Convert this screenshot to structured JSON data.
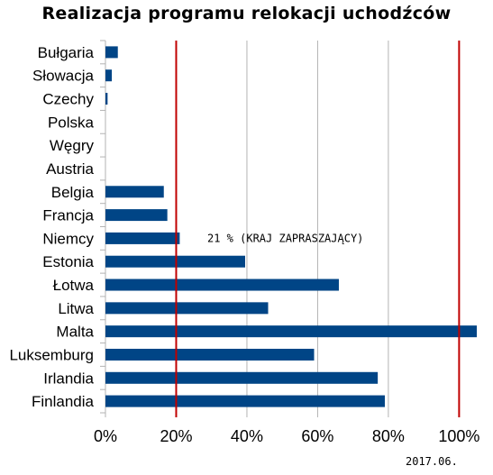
{
  "chart_data": {
    "type": "bar",
    "orientation": "horizontal",
    "title": "Realizacja programu relokacji uchodźców",
    "categories": [
      "Bułgaria",
      "Słowacja",
      "Czechy",
      "Polska",
      "Węgry",
      "Austria",
      "Belgia",
      "Francja",
      "Niemcy",
      "Estonia",
      "Łotwa",
      "Litwa",
      "Malta",
      "Luksemburg",
      "Irlandia",
      "Finlandia"
    ],
    "values": [
      3.5,
      1.8,
      0.6,
      0,
      0,
      0,
      16.5,
      17.5,
      21,
      39.5,
      66,
      46,
      105,
      59,
      77,
      79
    ],
    "xlim": [
      0,
      105
    ],
    "xticks": [
      0,
      20,
      40,
      60,
      80,
      100
    ],
    "xtick_labels": [
      "0%",
      "20%",
      "40%",
      "60%",
      "80%",
      "100%"
    ],
    "grid": true,
    "bar_color": "#004586",
    "reference_lines": [
      {
        "value": 20,
        "color": "#c00000"
      },
      {
        "value": 100,
        "color": "#c00000"
      }
    ],
    "annotation": "21 % (KRAJ ZAPRASZAJĄCY)",
    "footer_date": "2017.06."
  }
}
